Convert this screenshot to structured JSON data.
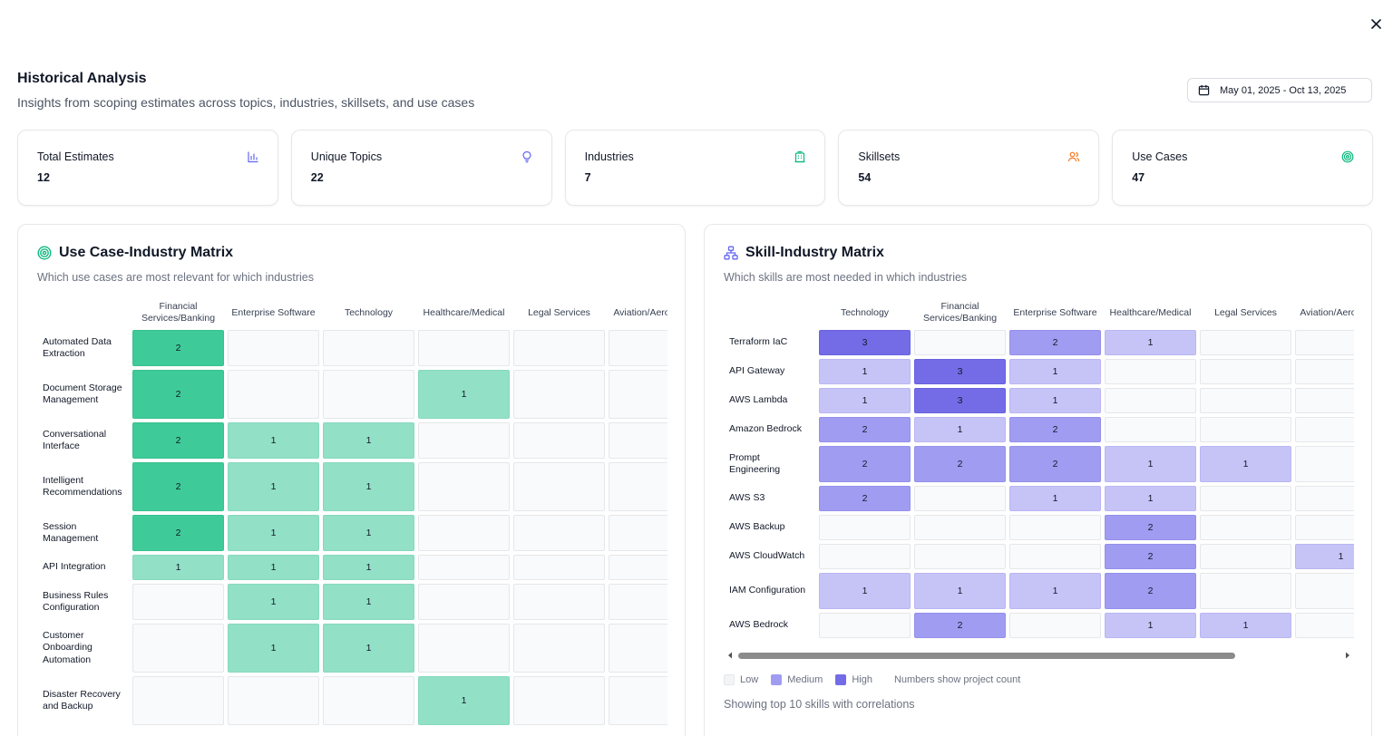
{
  "header": {
    "title": "Historical Analysis",
    "subtitle": "Insights from scoping estimates across topics, industries, skillsets, and use cases"
  },
  "date_range": {
    "label": "May 01, 2025 - Oct 13, 2025",
    "icon": "calendar-icon"
  },
  "stats": [
    {
      "label": "Total Estimates",
      "value": "12",
      "icon": "bar-chart-icon",
      "color": "#6366f1"
    },
    {
      "label": "Unique Topics",
      "value": "22",
      "icon": "lightbulb-icon",
      "color": "#6366f1"
    },
    {
      "label": "Industries",
      "value": "7",
      "icon": "building-icon",
      "color": "#10b981"
    },
    {
      "label": "Skillsets",
      "value": "54",
      "icon": "users-icon",
      "color": "#f97316"
    },
    {
      "label": "Use Cases",
      "value": "47",
      "icon": "target-icon",
      "color": "#10b981"
    }
  ],
  "use_case_matrix": {
    "title": "Use Case-Industry Matrix",
    "subtitle": "Which use cases are most relevant for which industries",
    "icon": "target-icon",
    "columns": [
      "Financial Services/Banking",
      "Enterprise Software",
      "Technology",
      "Healthcare/Medical",
      "Legal Services",
      "Aviation/Aerospace"
    ],
    "rows": [
      {
        "label": "Automated Data Extraction",
        "values": [
          2,
          0,
          0,
          0,
          0,
          0
        ]
      },
      {
        "label": "Document Storage Management",
        "values": [
          2,
          0,
          0,
          1,
          0,
          0
        ]
      },
      {
        "label": "Conversational Interface",
        "values": [
          2,
          1,
          1,
          0,
          0,
          0
        ]
      },
      {
        "label": "Intelligent Recommendations",
        "values": [
          2,
          1,
          1,
          0,
          0,
          0
        ]
      },
      {
        "label": "Session Management",
        "values": [
          2,
          1,
          1,
          0,
          0,
          0
        ]
      },
      {
        "label": "API Integration",
        "values": [
          1,
          1,
          1,
          0,
          0,
          0
        ]
      },
      {
        "label": "Business Rules Configuration",
        "values": [
          0,
          1,
          1,
          0,
          0,
          0
        ]
      },
      {
        "label": "Customer Onboarding Automation",
        "values": [
          0,
          1,
          1,
          0,
          0,
          0
        ]
      },
      {
        "label": "Disaster Recovery and Backup",
        "values": [
          0,
          0,
          0,
          1,
          0,
          0
        ]
      }
    ]
  },
  "skill_matrix": {
    "title": "Skill-Industry Matrix",
    "subtitle": "Which skills are most needed in which industries",
    "icon": "network-icon",
    "columns": [
      "Technology",
      "Financial Services/Banking",
      "Enterprise Software",
      "Healthcare/Medical",
      "Legal Services",
      "Aviation/Aerospace"
    ],
    "rows": [
      {
        "label": "Terraform IaC",
        "values": [
          3,
          0,
          2,
          1,
          0,
          0
        ]
      },
      {
        "label": "API Gateway",
        "values": [
          1,
          3,
          1,
          0,
          0,
          0
        ]
      },
      {
        "label": "AWS Lambda",
        "values": [
          1,
          3,
          1,
          0,
          0,
          0
        ]
      },
      {
        "label": "Amazon Bedrock",
        "values": [
          2,
          1,
          2,
          0,
          0,
          0
        ]
      },
      {
        "label": "Prompt Engineering",
        "values": [
          2,
          2,
          2,
          1,
          1,
          0
        ]
      },
      {
        "label": "AWS S3",
        "values": [
          2,
          0,
          1,
          1,
          0,
          0
        ]
      },
      {
        "label": "AWS Backup",
        "values": [
          0,
          0,
          0,
          2,
          0,
          0
        ]
      },
      {
        "label": "AWS CloudWatch",
        "values": [
          0,
          0,
          0,
          2,
          0,
          1
        ]
      },
      {
        "label": "IAM Configuration",
        "values": [
          1,
          1,
          1,
          2,
          0,
          0
        ]
      },
      {
        "label": "AWS Bedrock",
        "values": [
          0,
          2,
          0,
          1,
          1,
          0
        ]
      }
    ],
    "legend": {
      "low": "Low",
      "medium": "Medium",
      "high": "High",
      "note": "Numbers show project count"
    },
    "footnote": "Showing top 10 skills with correlations"
  },
  "colors": {
    "green_low": "#92e0c6",
    "green_high": "#3fcb99",
    "purple_low": "#c6c4f7",
    "purple_mid": "#a09cf1",
    "purple_high": "#736ce6",
    "empty": "#f9fafb"
  }
}
